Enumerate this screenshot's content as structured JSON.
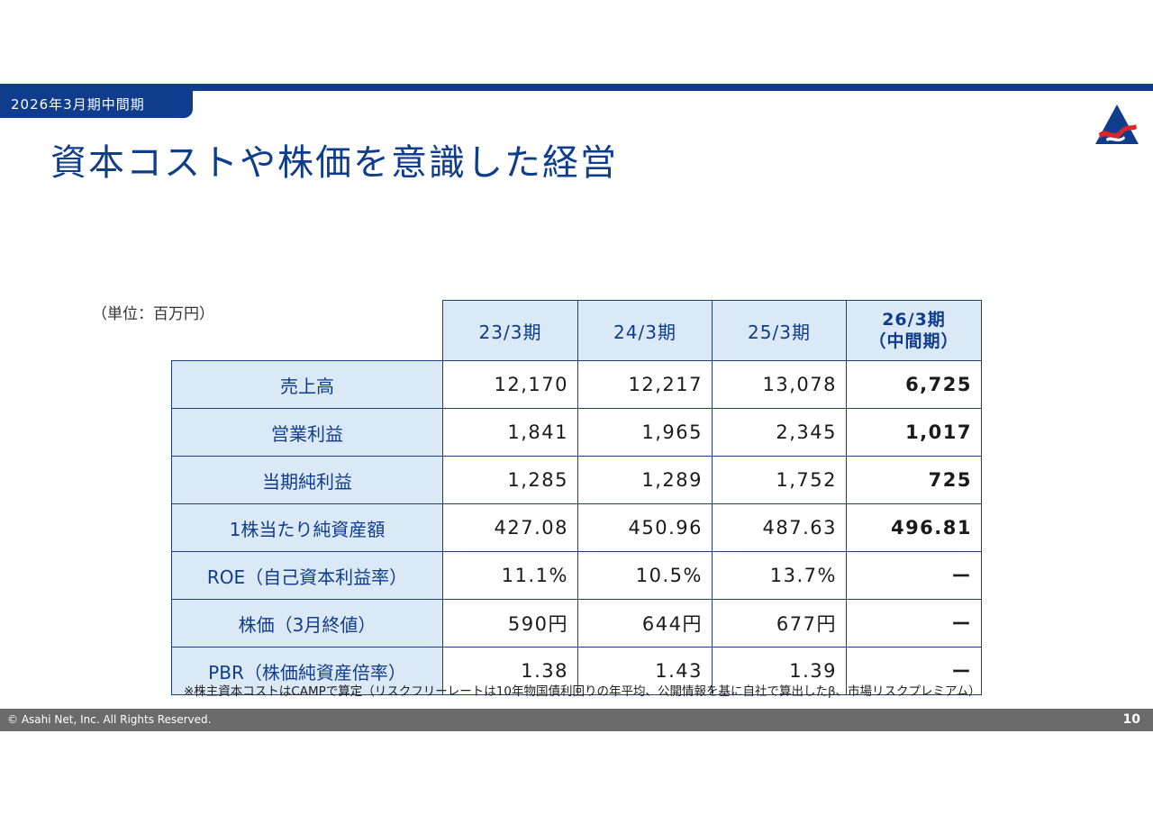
{
  "header": {
    "period_tab": "2026年3月期中間期",
    "title": "資本コストや株価を意識した経営"
  },
  "unit_note": "（単位：百万円）",
  "table": {
    "columns": [
      "23/3期",
      "24/3期",
      "25/3期"
    ],
    "current_column": {
      "line1": "26/3期",
      "line2": "（中間期）"
    },
    "rows": [
      {
        "label": "売上高",
        "values": [
          "12,170",
          "12,217",
          "13,078",
          "6,725"
        ]
      },
      {
        "label": "営業利益",
        "values": [
          "1,841",
          "1,965",
          "2,345",
          "1,017"
        ]
      },
      {
        "label": "当期純利益",
        "values": [
          "1,285",
          "1,289",
          "1,752",
          "725"
        ]
      },
      {
        "label": "1株当たり純資産額",
        "values": [
          "427.08",
          "450.96",
          "487.63",
          "496.81"
        ]
      },
      {
        "label": "ROE（自己資本利益率）",
        "values": [
          "11.1%",
          "10.5%",
          "13.7%",
          "ー"
        ]
      },
      {
        "label": "株価（3月終値）",
        "values": [
          "590円",
          "644円",
          "677円",
          "ー"
        ]
      },
      {
        "label": "PBR（株価純資産倍率）",
        "values": [
          "1.38",
          "1.43",
          "1.39",
          "ー"
        ]
      }
    ]
  },
  "footnote": "※株主資本コストはCAMPで算定（リスクフリーレートは10年物国債利回りの年平均、公開情報を基に自社で算出したβ、市場リスクプレミアム）",
  "footer": {
    "copyright": "© Asahi Net, Inc. All Rights Reserved.",
    "page_number": "10"
  },
  "colors": {
    "brand_navy": "#0f3c8c",
    "header_cell_bg": "#dbe9f7",
    "logo_red": "#d9262b",
    "footer_gray": "#6b6b6b"
  },
  "icons": {
    "logo": "asahi-net-logo-icon"
  }
}
